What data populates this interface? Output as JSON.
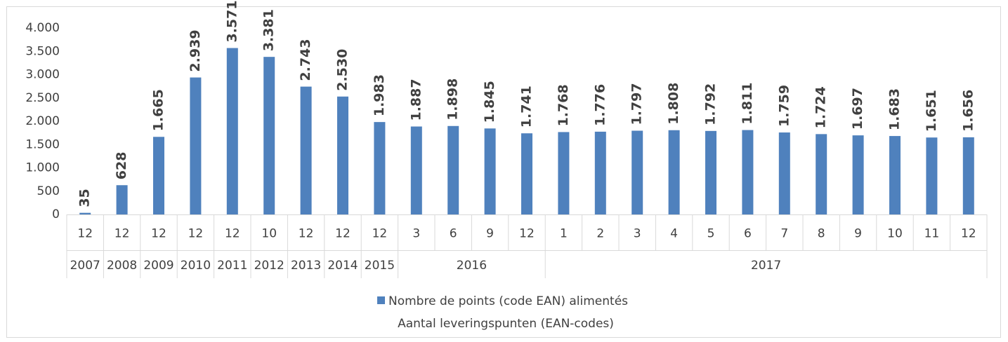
{
  "chart_data": {
    "type": "bar",
    "categories": [
      "12",
      "12",
      "12",
      "12",
      "12",
      "10",
      "12",
      "12",
      "12",
      "3",
      "6",
      "9",
      "12",
      "1",
      "2",
      "3",
      "4",
      "5",
      "6",
      "7",
      "8",
      "9",
      "10",
      "11",
      "12"
    ],
    "category_groups": [
      "2007",
      "2008",
      "2009",
      "2010",
      "2011",
      "2012",
      "2013",
      "2014",
      "2015",
      "2016",
      null,
      null,
      null,
      "2017",
      null,
      null,
      null,
      null,
      null,
      null,
      null,
      null,
      null,
      null,
      null
    ],
    "series": [
      {
        "name": "Nombre de points (code EAN) alimentés",
        "color": "#4f81bd",
        "values": [
          35,
          628,
          1665,
          2939,
          3571,
          3381,
          2743,
          2530,
          1983,
          1887,
          1898,
          1845,
          1741,
          1768,
          1776,
          1797,
          1808,
          1792,
          1811,
          1759,
          1724,
          1697,
          1683,
          1651,
          1656
        ],
        "value_labels": [
          "35",
          "628",
          "1.665",
          "2.939",
          "3.571",
          "3.381",
          "2.743",
          "2.530",
          "1.983",
          "1.887",
          "1.898",
          "1.845",
          "1.741",
          "1.768",
          "1.776",
          "1.797",
          "1.808",
          "1.792",
          "1.811",
          "1.759",
          "1.724",
          "1.697",
          "1.683",
          "1.651",
          "1.656"
        ]
      }
    ],
    "legend_note": "Aantal leveringspunten (EAN-codes)",
    "ylim": [
      0,
      4000
    ],
    "yticks": [
      0,
      500,
      {
        "value": 1000,
        "label": "1.000"
      },
      {
        "value": 1500,
        "label": "1.500"
      },
      {
        "value": 2000,
        "label": "2.000"
      },
      {
        "value": 2500,
        "label": "2.500"
      },
      {
        "value": 3000,
        "label": "3.000"
      },
      {
        "value": 3500,
        "label": "3.500"
      },
      {
        "value": 4000,
        "label": "4.000"
      }
    ],
    "grid": false
  }
}
